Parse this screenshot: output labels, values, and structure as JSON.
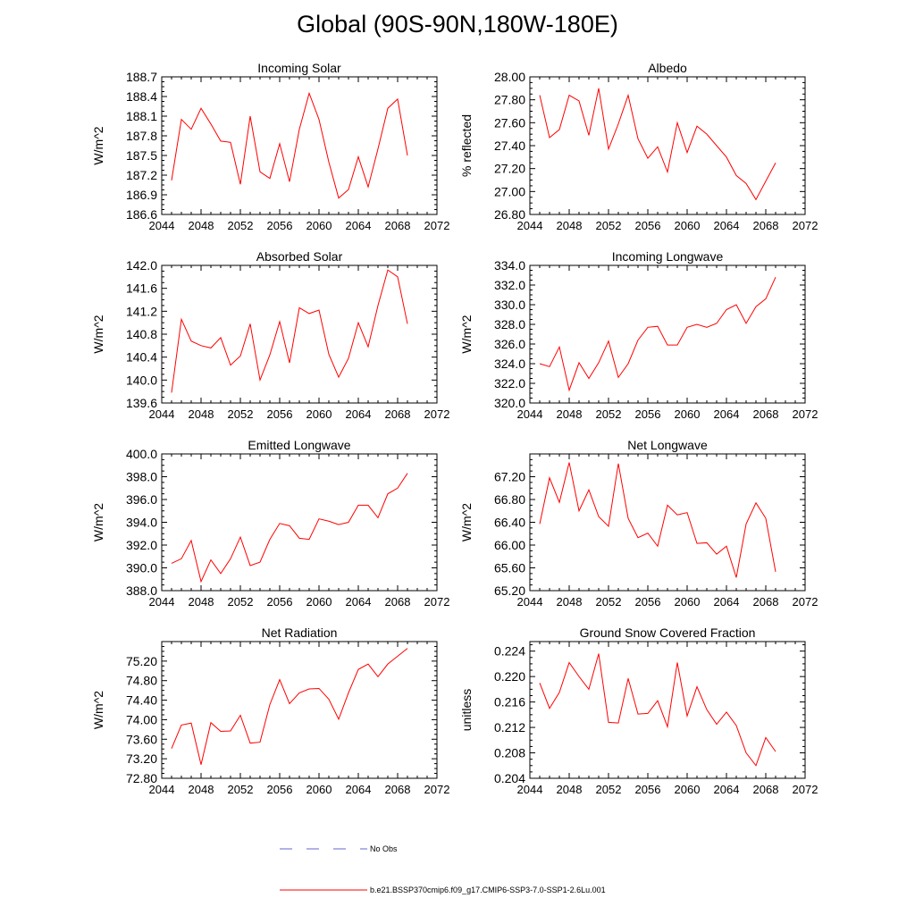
{
  "title": "Global (90S-90N,180W-180E)",
  "legend": [
    {
      "label": "No Obs",
      "color": "#6666cc",
      "dash": "dashed"
    },
    {
      "label": "b.e21.BSSP370cmip6.f09_g17.CMIP6-SSP3-7.0-SSP1-2.6Lu.001",
      "color": "#ff0000",
      "dash": "solid"
    }
  ],
  "chart_data": [
    {
      "type": "line",
      "title": "Incoming Solar",
      "xlabel": "",
      "ylabel": "W/m^2",
      "xlim": [
        2044,
        2072
      ],
      "xticks": [
        "2044",
        "2048",
        "2052",
        "2056",
        "2060",
        "2064",
        "2068",
        "2072"
      ],
      "ylim": [
        186.6,
        188.7
      ],
      "yticks": [
        "186.6",
        "186.9",
        "187.2",
        "187.5",
        "187.8",
        "188.1",
        "188.4",
        "188.7"
      ],
      "series": [
        {
          "color": "#ff0000",
          "x": [
            2045,
            2046,
            2047,
            2048,
            2049,
            2050,
            2051,
            2052,
            2053,
            2054,
            2055,
            2056,
            2057,
            2058,
            2059,
            2060,
            2061,
            2062,
            2063,
            2064,
            2065,
            2066,
            2067,
            2068,
            2069
          ],
          "y": [
            187.12,
            188.05,
            187.9,
            188.22,
            187.98,
            187.72,
            187.7,
            187.06,
            188.1,
            187.25,
            187.15,
            187.68,
            187.1,
            187.9,
            188.45,
            188.05,
            187.4,
            186.85,
            186.98,
            187.48,
            187.02,
            187.6,
            188.22,
            188.36,
            187.5
          ]
        }
      ]
    },
    {
      "type": "line",
      "title": "Albedo",
      "xlabel": "",
      "ylabel": "% reflected",
      "xlim": [
        2044,
        2072
      ],
      "xticks": [
        "2044",
        "2048",
        "2052",
        "2056",
        "2060",
        "2064",
        "2068",
        "2072"
      ],
      "ylim": [
        26.8,
        28.0
      ],
      "yticks": [
        "26.80",
        "27.00",
        "27.20",
        "27.40",
        "27.60",
        "27.80",
        "28.00"
      ],
      "series": [
        {
          "color": "#ff0000",
          "x": [
            2045,
            2046,
            2047,
            2048,
            2049,
            2050,
            2051,
            2052,
            2053,
            2054,
            2055,
            2056,
            2057,
            2058,
            2059,
            2060,
            2061,
            2062,
            2063,
            2064,
            2065,
            2066,
            2067,
            2068,
            2069
          ],
          "y": [
            27.84,
            27.47,
            27.54,
            27.84,
            27.79,
            27.49,
            27.9,
            27.37,
            27.59,
            27.84,
            27.46,
            27.29,
            27.39,
            27.17,
            27.6,
            27.34,
            27.57,
            27.5,
            27.4,
            27.3,
            27.14,
            27.07,
            26.93,
            27.09,
            27.25
          ]
        }
      ]
    },
    {
      "type": "line",
      "title": "Absorbed Solar",
      "xlabel": "",
      "ylabel": "W/m^2",
      "xlim": [
        2044,
        2072
      ],
      "xticks": [
        "2044",
        "2048",
        "2052",
        "2056",
        "2060",
        "2064",
        "2068",
        "2072"
      ],
      "ylim": [
        139.6,
        142.0
      ],
      "yticks": [
        "139.6",
        "140.0",
        "140.4",
        "140.8",
        "141.2",
        "141.6",
        "142.0"
      ],
      "series": [
        {
          "color": "#ff0000",
          "x": [
            2045,
            2046,
            2047,
            2048,
            2049,
            2050,
            2051,
            2052,
            2053,
            2054,
            2055,
            2056,
            2057,
            2058,
            2059,
            2060,
            2061,
            2062,
            2063,
            2064,
            2065,
            2066,
            2067,
            2068,
            2069
          ],
          "y": [
            139.78,
            141.06,
            140.68,
            140.6,
            140.56,
            140.74,
            140.26,
            140.42,
            140.98,
            140.0,
            140.44,
            141.02,
            140.3,
            141.26,
            141.16,
            141.22,
            140.45,
            140.05,
            140.38,
            141.0,
            140.58,
            141.3,
            141.92,
            141.8,
            140.98
          ]
        }
      ]
    },
    {
      "type": "line",
      "title": "Incoming Longwave",
      "xlabel": "",
      "ylabel": "W/m^2",
      "xlim": [
        2044,
        2072
      ],
      "xticks": [
        "2044",
        "2048",
        "2052",
        "2056",
        "2060",
        "2064",
        "2068",
        "2072"
      ],
      "ylim": [
        320.0,
        334.0
      ],
      "yticks": [
        "320.0",
        "322.0",
        "324.0",
        "326.0",
        "328.0",
        "330.0",
        "332.0",
        "334.0"
      ],
      "series": [
        {
          "color": "#ff0000",
          "x": [
            2045,
            2046,
            2047,
            2048,
            2049,
            2050,
            2051,
            2052,
            2053,
            2054,
            2055,
            2056,
            2057,
            2058,
            2059,
            2060,
            2061,
            2062,
            2063,
            2064,
            2065,
            2066,
            2067,
            2068,
            2069
          ],
          "y": [
            324.0,
            323.7,
            325.7,
            321.3,
            324.1,
            322.5,
            324.1,
            326.3,
            322.6,
            324.0,
            326.4,
            327.7,
            327.8,
            325.9,
            325.9,
            327.7,
            328.0,
            327.7,
            328.1,
            329.5,
            330.0,
            328.1,
            329.8,
            330.6,
            332.8
          ]
        }
      ]
    },
    {
      "type": "line",
      "title": "Emitted Longwave",
      "xlabel": "",
      "ylabel": "W/m^2",
      "xlim": [
        2044,
        2072
      ],
      "xticks": [
        "2044",
        "2048",
        "2052",
        "2056",
        "2060",
        "2064",
        "2068",
        "2072"
      ],
      "ylim": [
        388.0,
        400.0
      ],
      "yticks": [
        "388.0",
        "390.0",
        "392.0",
        "394.0",
        "396.0",
        "398.0",
        "400.0"
      ],
      "series": [
        {
          "color": "#ff0000",
          "x": [
            2045,
            2046,
            2047,
            2048,
            2049,
            2050,
            2051,
            2052,
            2053,
            2054,
            2055,
            2056,
            2057,
            2058,
            2059,
            2060,
            2061,
            2062,
            2063,
            2064,
            2065,
            2066,
            2067,
            2068,
            2069
          ],
          "y": [
            390.4,
            390.8,
            392.4,
            388.8,
            390.7,
            389.5,
            390.8,
            392.7,
            390.2,
            390.5,
            392.5,
            393.9,
            393.7,
            392.6,
            392.5,
            394.3,
            394.1,
            393.8,
            394.0,
            395.5,
            395.5,
            394.4,
            396.5,
            397.0,
            398.3
          ]
        }
      ]
    },
    {
      "type": "line",
      "title": "Net Longwave",
      "xlabel": "",
      "ylabel": "W/m^2",
      "xlim": [
        2044,
        2072
      ],
      "xticks": [
        "2044",
        "2048",
        "2052",
        "2056",
        "2060",
        "2064",
        "2068",
        "2072"
      ],
      "ylim": [
        65.2,
        67.6
      ],
      "yticks": [
        "65.20",
        "65.60",
        "66.00",
        "66.40",
        "66.80",
        "67.20"
      ],
      "series": [
        {
          "color": "#ff0000",
          "x": [
            2045,
            2046,
            2047,
            2048,
            2049,
            2050,
            2051,
            2052,
            2053,
            2054,
            2055,
            2056,
            2057,
            2058,
            2059,
            2060,
            2061,
            2062,
            2063,
            2064,
            2065,
            2066,
            2067,
            2068,
            2069
          ],
          "y": [
            66.37,
            67.18,
            66.75,
            67.45,
            66.6,
            66.97,
            66.5,
            66.33,
            67.43,
            66.47,
            66.13,
            66.21,
            65.98,
            66.7,
            66.53,
            66.57,
            66.03,
            66.04,
            65.84,
            65.98,
            65.43,
            66.37,
            66.74,
            66.47,
            65.53
          ]
        }
      ]
    },
    {
      "type": "line",
      "title": "Net Radiation",
      "xlabel": "",
      "ylabel": "W/m^2",
      "xlim": [
        2044,
        2072
      ],
      "xticks": [
        "2044",
        "2048",
        "2052",
        "2056",
        "2060",
        "2064",
        "2068",
        "2072"
      ],
      "ylim": [
        72.8,
        75.6
      ],
      "yticks": [
        "72.80",
        "73.20",
        "73.60",
        "74.00",
        "74.40",
        "74.80",
        "75.20"
      ],
      "series": [
        {
          "color": "#ff0000",
          "x": [
            2045,
            2046,
            2047,
            2048,
            2049,
            2050,
            2051,
            2052,
            2053,
            2054,
            2055,
            2056,
            2057,
            2058,
            2059,
            2060,
            2061,
            2062,
            2063,
            2064,
            2065,
            2066,
            2067,
            2068,
            2069
          ],
          "y": [
            73.41,
            73.89,
            73.93,
            73.08,
            73.94,
            73.76,
            73.77,
            74.09,
            73.52,
            73.54,
            74.31,
            74.82,
            74.33,
            74.55,
            74.63,
            74.64,
            74.42,
            74.01,
            74.55,
            75.03,
            75.14,
            74.88,
            75.14,
            75.3,
            75.46
          ]
        }
      ]
    },
    {
      "type": "line",
      "title": "Ground Snow Covered Fraction",
      "xlabel": "",
      "ylabel": "unitless",
      "xlim": [
        2044,
        2072
      ],
      "xticks": [
        "2044",
        "2048",
        "2052",
        "2056",
        "2060",
        "2064",
        "2068",
        "2072"
      ],
      "ylim": [
        0.204,
        0.2255
      ],
      "yticks": [
        "0.204",
        "0.208",
        "0.212",
        "0.216",
        "0.220",
        "0.224"
      ],
      "series": [
        {
          "color": "#ff0000",
          "x": [
            2045,
            2046,
            2047,
            2048,
            2049,
            2050,
            2051,
            2052,
            2053,
            2054,
            2055,
            2056,
            2057,
            2058,
            2059,
            2060,
            2061,
            2062,
            2063,
            2064,
            2065,
            2066,
            2067,
            2068,
            2069
          ],
          "y": [
            0.219,
            0.215,
            0.2175,
            0.2222,
            0.22,
            0.218,
            0.2236,
            0.2128,
            0.2127,
            0.2197,
            0.2141,
            0.2142,
            0.2162,
            0.2121,
            0.2222,
            0.2138,
            0.2184,
            0.2148,
            0.2125,
            0.2144,
            0.2123,
            0.208,
            0.206,
            0.2104,
            0.2082
          ]
        }
      ]
    }
  ]
}
